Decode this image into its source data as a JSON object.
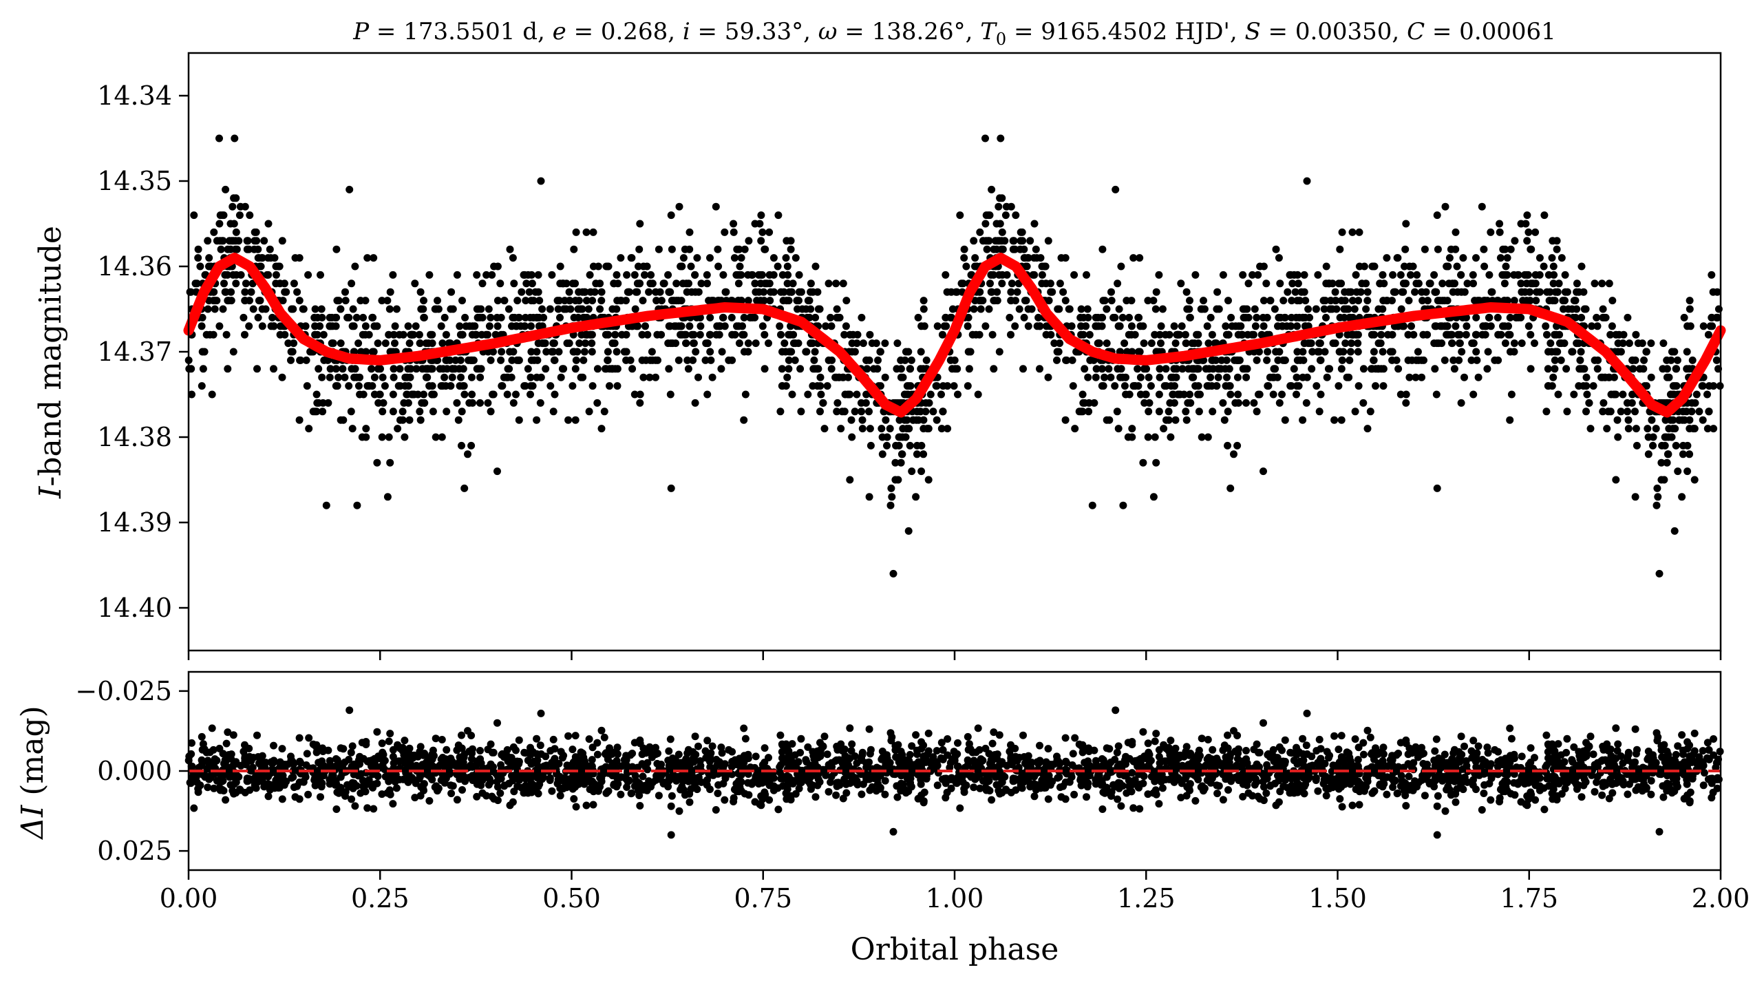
{
  "chart_data": [
    {
      "type": "scatter",
      "panel": "top",
      "title_parts": {
        "P_sym": "P",
        "P_val": " = 173.5501 d, ",
        "e_sym": "e",
        "e_val": " = 0.268, ",
        "i_sym": "i",
        "i_val": " = 59.33°, ",
        "w_sym": "ω",
        "w_val": " = 138.26°, ",
        "T_sym": "T",
        "T_sub": "0",
        "T_val": " = 9165.4502 HJD', ",
        "S_sym": "S",
        "S_val": " = 0.00350, ",
        "C_sym": "C",
        "C_val": " = 0.00061"
      },
      "ylabel_sym": "I",
      "ylabel_rest": "-band magnitude",
      "xlim": [
        0.0,
        2.0
      ],
      "ylim": [
        14.405,
        14.335
      ],
      "y_inverted": true,
      "yticks": [
        "14.34",
        "14.35",
        "14.36",
        "14.37",
        "14.38",
        "14.39",
        "14.40"
      ],
      "ytick_values": [
        14.34,
        14.35,
        14.36,
        14.37,
        14.38,
        14.39,
        14.4
      ],
      "xtick_values": [
        0.0,
        0.25,
        0.5,
        0.75,
        1.0,
        1.25,
        1.5,
        1.75,
        2.0
      ],
      "xtick_labels_shown": false,
      "series": [
        {
          "kind": "points",
          "color": "#000000",
          "description_note": "phase-folded I-band photometry, repeated over two cycles",
          "phase": [
            0.0,
            0.04,
            0.06,
            0.1,
            0.15,
            0.2,
            0.25,
            0.3,
            0.4,
            0.5,
            0.6,
            0.7,
            0.8,
            0.87,
            0.93,
            0.97
          ],
          "mag": [
            14.367,
            14.36,
            14.359,
            14.362,
            14.367,
            14.37,
            14.371,
            14.37,
            14.369,
            14.367,
            14.366,
            14.365,
            14.368,
            14.373,
            14.377,
            14.372
          ],
          "scatter_sigma": 0.0045,
          "notable_points": [
            {
              "x": 0.04,
              "y": 14.345
            },
            {
              "x": 0.06,
              "y": 14.345
            },
            {
              "x": 0.21,
              "y": 14.351
            },
            {
              "x": 0.46,
              "y": 14.35
            },
            {
              "x": 0.63,
              "y": 14.386
            },
            {
              "x": 0.18,
              "y": 14.388
            },
            {
              "x": 0.22,
              "y": 14.388
            },
            {
              "x": 0.26,
              "y": 14.387
            },
            {
              "x": 0.92,
              "y": 14.396
            },
            {
              "x": 0.94,
              "y": 14.391
            },
            {
              "x": 0.36,
              "y": 14.386
            }
          ]
        },
        {
          "kind": "model-line",
          "color": "#ff0000",
          "x": [
            0.0,
            0.02,
            0.04,
            0.06,
            0.08,
            0.1,
            0.12,
            0.15,
            0.18,
            0.21,
            0.25,
            0.3,
            0.4,
            0.5,
            0.6,
            0.7,
            0.75,
            0.8,
            0.85,
            0.88,
            0.91,
            0.93,
            0.95,
            0.98,
            1.0,
            1.02,
            1.04,
            1.06,
            1.08,
            1.1,
            1.12,
            1.15,
            1.18,
            1.21,
            1.25,
            1.3,
            1.4,
            1.5,
            1.6,
            1.7,
            1.75,
            1.8,
            1.85,
            1.88,
            1.91,
            1.93,
            1.95,
            1.98,
            2.0
          ],
          "y": [
            14.3675,
            14.363,
            14.36,
            14.359,
            14.36,
            14.3625,
            14.3655,
            14.3685,
            14.37,
            14.3708,
            14.371,
            14.3705,
            14.369,
            14.3672,
            14.3658,
            14.3648,
            14.365,
            14.3665,
            14.37,
            14.373,
            14.3762,
            14.3771,
            14.3755,
            14.371,
            14.3675,
            14.363,
            14.36,
            14.359,
            14.36,
            14.3625,
            14.3655,
            14.3685,
            14.37,
            14.3708,
            14.371,
            14.3705,
            14.369,
            14.3672,
            14.3658,
            14.3648,
            14.365,
            14.3665,
            14.37,
            14.373,
            14.3762,
            14.3771,
            14.3755,
            14.371,
            14.3675
          ]
        }
      ]
    },
    {
      "type": "scatter",
      "panel": "bottom",
      "ylabel_sym": "ΔI",
      "ylabel_rest": " (mag)",
      "xlabel": "Orbital phase",
      "xlim": [
        0.0,
        2.0
      ],
      "ylim": [
        0.031,
        -0.031
      ],
      "y_inverted": true,
      "yticks": [
        "−0.025",
        "0.000",
        "0.025"
      ],
      "ytick_values": [
        -0.025,
        0.0,
        0.025
      ],
      "xticks": [
        "0.00",
        "0.25",
        "0.50",
        "0.75",
        "1.00",
        "1.25",
        "1.50",
        "1.75",
        "2.00"
      ],
      "xtick_values": [
        0.0,
        0.25,
        0.5,
        0.75,
        1.0,
        1.25,
        1.5,
        1.75,
        2.0
      ],
      "series": [
        {
          "kind": "points",
          "color": "#000000",
          "description_note": "residuals around zero",
          "scatter_sigma": 0.0045,
          "notable_points": [
            {
              "x": 0.21,
              "y": -0.019
            },
            {
              "x": 0.63,
              "y": 0.02
            },
            {
              "x": 0.92,
              "y": 0.019
            },
            {
              "x": 1.21,
              "y": -0.019
            },
            {
              "x": 1.63,
              "y": 0.02
            },
            {
              "x": 1.92,
              "y": 0.019
            },
            {
              "x": 0.46,
              "y": -0.018
            },
            {
              "x": 1.46,
              "y": -0.018
            }
          ]
        },
        {
          "kind": "zero-line",
          "color": "#dd1f1f",
          "y": 0.0,
          "style": "dashed"
        }
      ]
    }
  ]
}
